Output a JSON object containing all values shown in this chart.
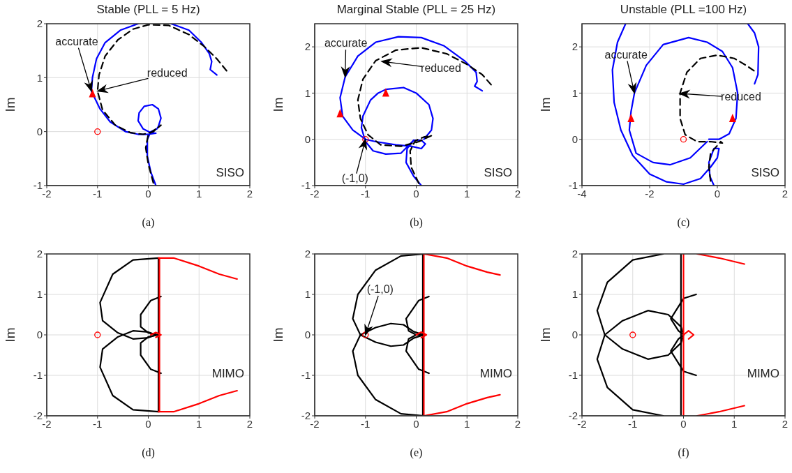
{
  "chart_data": [
    {
      "type": "line",
      "title": "Stable (PLL = 5 Hz)",
      "ylabel": "Im",
      "xlim": [
        -2,
        2
      ],
      "xticks": [
        -2,
        -1,
        0,
        1,
        2
      ],
      "ylim": [
        -1,
        2
      ],
      "yticks": [
        -1,
        0,
        1,
        2
      ],
      "grid": true,
      "annotations": [
        "SISO",
        "(a)",
        {
          "text": "accurate",
          "x": -1.12,
          "y": 0.75
        },
        {
          "text": "reduced",
          "x": -1.0,
          "y": 0.75
        }
      ],
      "series": [
        {
          "color": "#0000ff",
          "x": [
            0.15,
            0.05,
            -0.02,
            -0.02,
            0.05,
            0.17,
            0.2,
            0.25,
            0.2,
            0.08,
            -0.08,
            -0.18,
            -0.2,
            -0.1,
            0.05,
            0.15,
            0.0,
            -0.2,
            -0.45,
            -0.75,
            -0.95,
            -1.12,
            -1.1,
            -1.02,
            -0.85,
            -0.55,
            -0.2
          ],
          "values": [
            -1,
            -0.75,
            -0.45,
            -0.15,
            0.0,
            0.05,
            0.1,
            0.25,
            0.42,
            0.5,
            0.47,
            0.35,
            0.2,
            0.05,
            -0.02,
            -0.03,
            -0.05,
            -0.05,
            0.0,
            0.18,
            0.42,
            0.75,
            1.0,
            1.35,
            1.65,
            1.88,
            2.0
          ]
        },
        {
          "color": "#0000ff",
          "x": [
            0.45,
            0.8,
            1.05,
            1.2,
            1.25,
            1.22,
            1.35
          ],
          "values": [
            2.0,
            1.88,
            1.65,
            1.45,
            1.3,
            1.15,
            1.05
          ]
        },
        {
          "color": "#000000",
          "line_style": "dashed",
          "x": [
            0.1,
            0.0,
            -0.05,
            0.0,
            0.15,
            0.25,
            0.1,
            -0.1,
            -0.35,
            -0.65,
            -0.9,
            -1.0,
            -0.97,
            -0.85,
            -0.6,
            -0.3,
            0.0,
            0.4,
            0.8,
            1.1,
            1.35,
            1.55
          ],
          "values": [
            -0.95,
            -0.6,
            -0.3,
            -0.05,
            0.05,
            0.12,
            0.0,
            -0.05,
            -0.02,
            0.12,
            0.4,
            0.75,
            1.05,
            1.4,
            1.7,
            1.9,
            1.98,
            1.97,
            1.8,
            1.58,
            1.35,
            1.12
          ]
        },
        {
          "type": "scatter",
          "color": "#ff0000",
          "marker": "circle",
          "x": [
            -1
          ],
          "values": [
            0
          ]
        },
        {
          "type": "scatter",
          "color": "#ff0000",
          "marker": "triangle",
          "x": [
            -1.1
          ],
          "values": [
            0.7
          ]
        }
      ]
    },
    {
      "type": "line",
      "title": "Marginal Stable (PLL = 25 Hz)",
      "ylabel": "Im",
      "xlim": [
        -2,
        2
      ],
      "xticks": [
        -2,
        -1,
        0,
        1,
        2
      ],
      "ylim": [
        -1,
        2.5
      ],
      "yticks": [
        -1,
        0,
        1,
        2
      ],
      "grid": true,
      "annotations": [
        "SISO",
        "(b)",
        {
          "text": "accurate",
          "x": -1.4,
          "y": 1.35
        },
        "reduced",
        {
          "text": "(-1,0)",
          "x": -1,
          "y": 0
        }
      ],
      "series": [
        {
          "color": "#0000ff",
          "x": [
            0.1,
            -0.05,
            -0.2,
            -0.18,
            -0.05,
            0.1,
            0.18,
            0.1,
            -0.1,
            -0.4,
            -0.8,
            -1.0,
            -1.25,
            -1.45,
            -1.5,
            -1.4,
            -1.15,
            -0.8,
            -0.35,
            0.1,
            0.55,
            0.95,
            1.18,
            1.2,
            1.15,
            1.3
          ],
          "values": [
            -1,
            -0.8,
            -0.5,
            -0.2,
            -0.02,
            -0.02,
            -0.1,
            -0.2,
            -0.15,
            -0.12,
            -0.05,
            0.0,
            0.2,
            0.5,
            0.9,
            1.35,
            1.8,
            2.1,
            2.22,
            2.2,
            2.02,
            1.7,
            1.45,
            1.25,
            1.15,
            1.05
          ]
        },
        {
          "color": "#0000ff",
          "x": [
            -0.05,
            -0.3,
            -0.6,
            -0.85,
            -1.0,
            -1.08,
            -1.05,
            -0.9,
            -0.75,
            -0.6,
            -0.25,
            0.0,
            0.25,
            0.33,
            0.3,
            0.15
          ],
          "values": [
            -0.02,
            -0.3,
            -0.32,
            -0.25,
            -0.05,
            0.25,
            0.5,
            0.85,
            1.0,
            1.08,
            1.12,
            1.0,
            0.75,
            0.45,
            0.2,
            0.0
          ]
        },
        {
          "color": "#000000",
          "line_style": "dashed",
          "x": [
            0.05,
            -0.1,
            -0.12,
            -0.02,
            0.15,
            0.3,
            0.05,
            -0.3,
            -0.7,
            -0.95,
            -1.1,
            -1.15,
            -1.05,
            -0.8,
            -0.4,
            0.1,
            0.6,
            1.0,
            1.3,
            1.5
          ],
          "values": [
            -0.95,
            -0.6,
            -0.25,
            -0.03,
            0.05,
            0.08,
            -0.05,
            -0.15,
            -0.12,
            0.1,
            0.45,
            0.85,
            1.3,
            1.7,
            1.93,
            1.98,
            1.85,
            1.62,
            1.4,
            1.15
          ]
        },
        {
          "type": "scatter",
          "color": "#ff0000",
          "marker": "circle",
          "x": [
            -1
          ],
          "values": [
            0
          ]
        },
        {
          "type": "scatter",
          "color": "#ff0000",
          "marker": "triangle",
          "x": [
            -1.5,
            -0.6
          ],
          "values": [
            0.55,
            1.0
          ]
        }
      ]
    },
    {
      "type": "line",
      "title": "Unstable (PLL =100 Hz)",
      "ylabel": "Im",
      "xlim": [
        -4,
        2
      ],
      "xticks": [
        -4,
        -2,
        0,
        2
      ],
      "ylim": [
        -1,
        2.5
      ],
      "yticks": [
        -1,
        0,
        1,
        2
      ],
      "grid": true,
      "annotations": [
        "SISO",
        "(c)",
        {
          "text": "accurate",
          "x": -2.45,
          "y": 1.0
        },
        "reduced"
      ],
      "series": [
        {
          "color": "#0000ff",
          "x": [
            1.1,
            1.2,
            1.22,
            1.1,
            0.9
          ],
          "values": [
            1.2,
            1.4,
            2.0,
            2.3,
            2.5
          ]
        },
        {
          "color": "#0000ff",
          "x": [
            -2.71,
            -2.95,
            -3.1,
            -3.05,
            -2.85,
            -2.5,
            -2.0,
            -1.5,
            -1.0,
            -0.5,
            -0.2,
            0.0,
            0.05,
            -0.1,
            -0.25,
            -0.22,
            -0.1
          ],
          "values": [
            2.5,
            2.1,
            1.5,
            0.8,
            0.2,
            -0.35,
            -0.75,
            -0.92,
            -0.97,
            -0.85,
            -0.6,
            -0.4,
            -0.2,
            -0.2,
            -0.5,
            -0.8,
            -1.0
          ]
        },
        {
          "color": "#0000ff",
          "x": [
            -0.25,
            0.05,
            0.35,
            0.55,
            0.6,
            0.45,
            0.15,
            -0.3,
            -0.85,
            -1.6,
            -2.1,
            -2.45,
            -2.55,
            -2.6,
            -2.4,
            -1.9,
            -1.4,
            -0.8,
            -0.3
          ],
          "values": [
            0.0,
            0.0,
            0.12,
            0.45,
            1.0,
            1.55,
            1.9,
            2.1,
            2.2,
            2.05,
            1.6,
            1.0,
            0.6,
            0.2,
            -0.3,
            -0.5,
            -0.55,
            -0.4,
            -0.05
          ]
        },
        {
          "color": "#000000",
          "line_style": "dashed",
          "x": [
            -0.2,
            -0.25,
            -0.2,
            0.1,
            0.15,
            -0.2,
            -0.6,
            -0.95,
            -1.1,
            -1.1,
            -0.9,
            -0.5,
            0.0,
            0.5,
            0.85,
            1.15
          ],
          "values": [
            -0.9,
            -0.6,
            -0.3,
            -0.05,
            -0.08,
            -0.05,
            -0.05,
            0.1,
            0.45,
            1.0,
            1.45,
            1.75,
            1.82,
            1.75,
            1.6,
            1.45
          ]
        },
        {
          "type": "scatter",
          "color": "#ff0000",
          "marker": "circle",
          "x": [
            -1
          ],
          "values": [
            0
          ]
        },
        {
          "type": "scatter",
          "color": "#ff0000",
          "marker": "triangle",
          "x": [
            -2.55,
            0.45
          ],
          "values": [
            0.45,
            0.45
          ]
        }
      ]
    },
    {
      "type": "line",
      "ylabel": "Im",
      "xlim": [
        -2,
        2
      ],
      "xticks": [
        -2,
        -1,
        0,
        1,
        2
      ],
      "ylim": [
        -2,
        2
      ],
      "yticks": [
        -2,
        -1,
        0,
        1,
        2
      ],
      "grid": true,
      "annotations": [
        "MIMO",
        "(d)"
      ],
      "series": [
        {
          "color": "#000000",
          "x": [
            0.2,
            -0.3,
            -0.7,
            -0.95,
            -0.9,
            -0.6,
            -0.3,
            0.0,
            0.15
          ],
          "values": [
            1.9,
            1.85,
            1.5,
            0.8,
            0.35,
            0.05,
            -0.1,
            -0.07,
            0.0
          ]
        },
        {
          "color": "#000000",
          "x": [
            0.2,
            -0.3,
            -0.7,
            -0.95,
            -0.9,
            -0.6,
            -0.3,
            0.0,
            0.15
          ],
          "values": [
            -1.9,
            -1.85,
            -1.5,
            -0.8,
            -0.35,
            -0.05,
            0.1,
            0.07,
            0.0
          ]
        },
        {
          "color": "#000000",
          "x": [
            0.25,
            0.05,
            -0.15,
            -0.15,
            0.0,
            0.2
          ],
          "values": [
            0.95,
            0.85,
            0.5,
            0.2,
            0.05,
            0.0
          ]
        },
        {
          "color": "#000000",
          "x": [
            0.25,
            0.05,
            -0.15,
            -0.15,
            0.0,
            0.2
          ],
          "values": [
            -0.95,
            -0.85,
            -0.5,
            -0.2,
            -0.05,
            0.0
          ]
        },
        {
          "color": "#000000",
          "x": [
            0.2,
            0.2
          ],
          "values": [
            1.9,
            -1.9
          ]
        },
        {
          "color": "#ff0000",
          "x": [
            0.2,
            0.5,
            1.0,
            1.4,
            1.75
          ],
          "values": [
            1.9,
            1.9,
            1.7,
            1.5,
            1.38
          ]
        },
        {
          "color": "#ff0000",
          "x": [
            0.2,
            0.5,
            1.0,
            1.4,
            1.75
          ],
          "values": [
            -1.9,
            -1.9,
            -1.7,
            -1.5,
            -1.38
          ]
        },
        {
          "color": "#ff0000",
          "x": [
            0.22,
            0.22
          ],
          "values": [
            1.9,
            -1.9
          ]
        },
        {
          "color": "#ff0000",
          "x": [
            0.05,
            0.15,
            0.25,
            0.15
          ],
          "values": [
            0,
            0.06,
            0,
            -0.06
          ]
        },
        {
          "type": "scatter",
          "color": "#ff0000",
          "marker": "circle",
          "x": [
            -1
          ],
          "values": [
            0
          ]
        }
      ]
    },
    {
      "type": "line",
      "ylabel": "Im",
      "xlim": [
        -2,
        2
      ],
      "xticks": [
        -2,
        -1,
        0,
        1,
        2
      ],
      "ylim": [
        -2,
        2
      ],
      "yticks": [
        -2,
        -1,
        0,
        1,
        2
      ],
      "grid": true,
      "annotations": [
        "MIMO",
        "(e)",
        {
          "text": "(-1,0)",
          "x": -1,
          "y": 0
        }
      ],
      "series": [
        {
          "color": "#000000",
          "x": [
            0.15,
            -0.3,
            -0.8,
            -1.15,
            -1.25,
            -1.1,
            -0.8,
            -0.5,
            -0.25,
            -0.05,
            0.15
          ],
          "values": [
            2.0,
            1.95,
            1.6,
            1.0,
            0.4,
            0.0,
            -0.18,
            -0.28,
            -0.25,
            -0.08,
            0.0
          ]
        },
        {
          "color": "#000000",
          "x": [
            0.15,
            -0.3,
            -0.8,
            -1.15,
            -1.25,
            -1.1,
            -0.8,
            -0.5,
            -0.25,
            -0.05,
            0.15
          ],
          "values": [
            -2.0,
            -1.95,
            -1.6,
            -1.0,
            -0.4,
            0.0,
            0.18,
            0.28,
            0.25,
            0.08,
            0.0
          ]
        },
        {
          "color": "#000000",
          "x": [
            0.25,
            0.05,
            -0.2,
            -0.15,
            0.0,
            0.15
          ],
          "values": [
            0.95,
            0.85,
            0.4,
            0.1,
            0.0,
            0.0
          ]
        },
        {
          "color": "#000000",
          "x": [
            0.25,
            0.05,
            -0.2,
            -0.15,
            0.0,
            0.15
          ],
          "values": [
            -0.95,
            -0.85,
            -0.4,
            -0.1,
            0.0,
            0.0
          ]
        },
        {
          "color": "#000000",
          "x": [
            0.13,
            0.13
          ],
          "values": [
            2,
            -2
          ]
        },
        {
          "color": "#ff0000",
          "x": [
            0.15,
            0.6,
            1.0,
            1.4,
            1.65
          ],
          "values": [
            2.0,
            1.9,
            1.7,
            1.55,
            1.48
          ]
        },
        {
          "color": "#ff0000",
          "x": [
            0.15,
            0.6,
            1.0,
            1.4,
            1.65
          ],
          "values": [
            -2.0,
            -1.9,
            -1.7,
            -1.55,
            -1.48
          ]
        },
        {
          "color": "#ff0000",
          "x": [
            0.15,
            0.15
          ],
          "values": [
            2,
            -2
          ]
        },
        {
          "color": "#ff0000",
          "x": [
            0.0,
            0.1,
            0.2,
            0.1
          ],
          "values": [
            0,
            0.07,
            0,
            -0.07
          ]
        },
        {
          "type": "scatter",
          "color": "#ff0000",
          "marker": "circle",
          "x": [
            -1
          ],
          "values": [
            0
          ]
        }
      ]
    },
    {
      "type": "line",
      "ylabel": "Im",
      "xlim": [
        -2,
        2
      ],
      "xticks": [
        -2,
        -1,
        0,
        1,
        2
      ],
      "ylim": [
        -2,
        2
      ],
      "yticks": [
        -2,
        -1,
        0,
        1,
        2
      ],
      "grid": true,
      "annotations": [
        "MIMO",
        "(f)"
      ],
      "series": [
        {
          "color": "#000000",
          "x": [
            -0.4,
            -1.0,
            -1.5,
            -1.7,
            -1.55,
            -1.2,
            -0.7,
            -0.3,
            -0.05,
            0.0
          ],
          "values": [
            2.0,
            1.85,
            1.3,
            0.6,
            0.0,
            -0.35,
            -0.6,
            -0.5,
            -0.2,
            0.0
          ]
        },
        {
          "color": "#000000",
          "x": [
            -0.4,
            -1.0,
            -1.5,
            -1.7,
            -1.55,
            -1.2,
            -0.7,
            -0.3,
            -0.05,
            0.0
          ],
          "values": [
            -2.0,
            -1.85,
            -1.3,
            -0.6,
            0.0,
            0.35,
            0.6,
            0.5,
            0.2,
            0.0
          ]
        },
        {
          "color": "#000000",
          "x": [
            0.25,
            0.0,
            -0.25,
            -0.1,
            0.0
          ],
          "values": [
            1.0,
            0.9,
            0.4,
            0.1,
            0.0
          ]
        },
        {
          "color": "#000000",
          "x": [
            0.25,
            0.0,
            -0.25,
            -0.1,
            0.0
          ],
          "values": [
            -1.0,
            -0.9,
            -0.4,
            -0.1,
            0.0
          ]
        },
        {
          "color": "#000000",
          "x": [
            -0.05,
            -0.05
          ],
          "values": [
            2,
            -2
          ]
        },
        {
          "color": "#ff0000",
          "x": [
            0.27,
            0.7,
            1.2
          ],
          "values": [
            2.0,
            1.9,
            1.75
          ]
        },
        {
          "color": "#ff0000",
          "x": [
            0.27,
            0.7,
            1.2
          ],
          "values": [
            -2.0,
            -1.9,
            -1.75
          ]
        },
        {
          "color": "#ff0000",
          "x": [
            0.0,
            0.0
          ],
          "values": [
            2,
            -2
          ]
        },
        {
          "color": "#ff0000",
          "x": [
            0.0,
            0.1,
            0.2,
            0.1
          ],
          "values": [
            0,
            0.1,
            0,
            -0.1
          ]
        },
        {
          "type": "scatter",
          "color": "#ff0000",
          "marker": "circle",
          "x": [
            -1
          ],
          "values": [
            0
          ]
        }
      ]
    }
  ]
}
